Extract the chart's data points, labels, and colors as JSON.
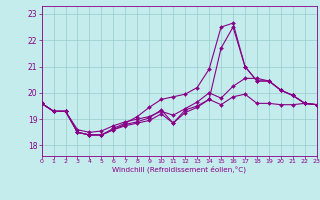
{
  "xlabel": "Windchill (Refroidissement éolien,°C)",
  "xlim": [
    0,
    23
  ],
  "ylim": [
    17.6,
    23.3
  ],
  "yticks": [
    18,
    19,
    20,
    21,
    22,
    23
  ],
  "xticks": [
    0,
    1,
    2,
    3,
    4,
    5,
    6,
    7,
    8,
    9,
    10,
    11,
    12,
    13,
    14,
    15,
    16,
    17,
    18,
    19,
    20,
    21,
    22,
    23
  ],
  "bg_color": "#c5ecec",
  "line_color": "#880088",
  "grid_color": "#99cccc",
  "lines": [
    [
      19.6,
      19.3,
      19.3,
      18.5,
      18.4,
      18.4,
      18.6,
      18.8,
      18.9,
      19.05,
      19.35,
      18.85,
      19.35,
      19.5,
      19.75,
      19.55,
      19.85,
      19.95,
      19.6,
      19.6,
      19.55,
      19.55,
      19.6,
      19.55
    ],
    [
      19.6,
      19.3,
      19.3,
      18.5,
      18.4,
      18.4,
      18.65,
      18.85,
      19.1,
      19.45,
      19.75,
      19.85,
      19.95,
      20.2,
      20.9,
      22.5,
      22.65,
      21.0,
      20.45,
      20.45,
      20.1,
      19.9,
      19.6,
      19.55
    ],
    [
      19.6,
      19.3,
      19.3,
      18.6,
      18.5,
      18.55,
      18.75,
      18.9,
      19.0,
      19.1,
      19.3,
      19.15,
      19.4,
      19.65,
      20.0,
      19.8,
      20.25,
      20.55,
      20.55,
      20.45,
      20.1,
      19.9,
      19.6,
      19.55
    ],
    [
      19.6,
      19.3,
      19.3,
      18.5,
      18.4,
      18.4,
      18.6,
      18.75,
      18.85,
      18.95,
      19.2,
      18.85,
      19.25,
      19.45,
      19.75,
      21.7,
      22.5,
      21.0,
      20.45,
      20.45,
      20.1,
      19.9,
      19.6,
      19.55
    ]
  ]
}
